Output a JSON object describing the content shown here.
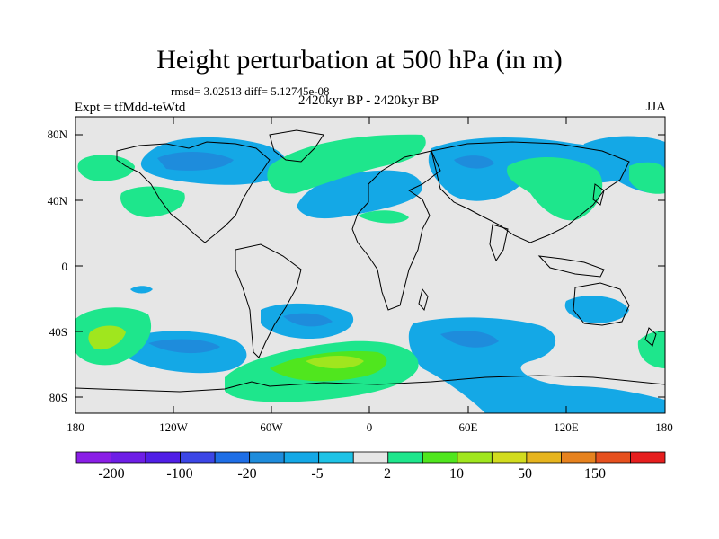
{
  "title": "Height perturbation at 500 hPa (in m)",
  "stats_text": "rmsd= 3.02513 diff= 5.12745e-08",
  "left_label": "Expt = tfMdd-teWtd",
  "center_label": "2420kyr BP - 2420kyr BP",
  "right_label": "JJA",
  "lat_ticks": [
    "80N",
    "40N",
    "0",
    "40S",
    "80S"
  ],
  "lon_ticks": [
    "180",
    "120W",
    "60W",
    "0",
    "60E",
    "120E",
    "180"
  ],
  "colorbar": {
    "colors": [
      "#8a1ee6",
      "#6e1ee6",
      "#501ee6",
      "#3c46e6",
      "#1e6ee6",
      "#1e8cdc",
      "#14a8e6",
      "#1ec3e6",
      "#e6e6e6",
      "#1ee68c",
      "#50e61e",
      "#a0e61e",
      "#d2dc1e",
      "#e6b41e",
      "#e6821e",
      "#e6501e",
      "#e61e1e"
    ],
    "labels": [
      "-200",
      "-100",
      "-20",
      "-5",
      "2",
      "10",
      "50",
      "150"
    ]
  }
}
